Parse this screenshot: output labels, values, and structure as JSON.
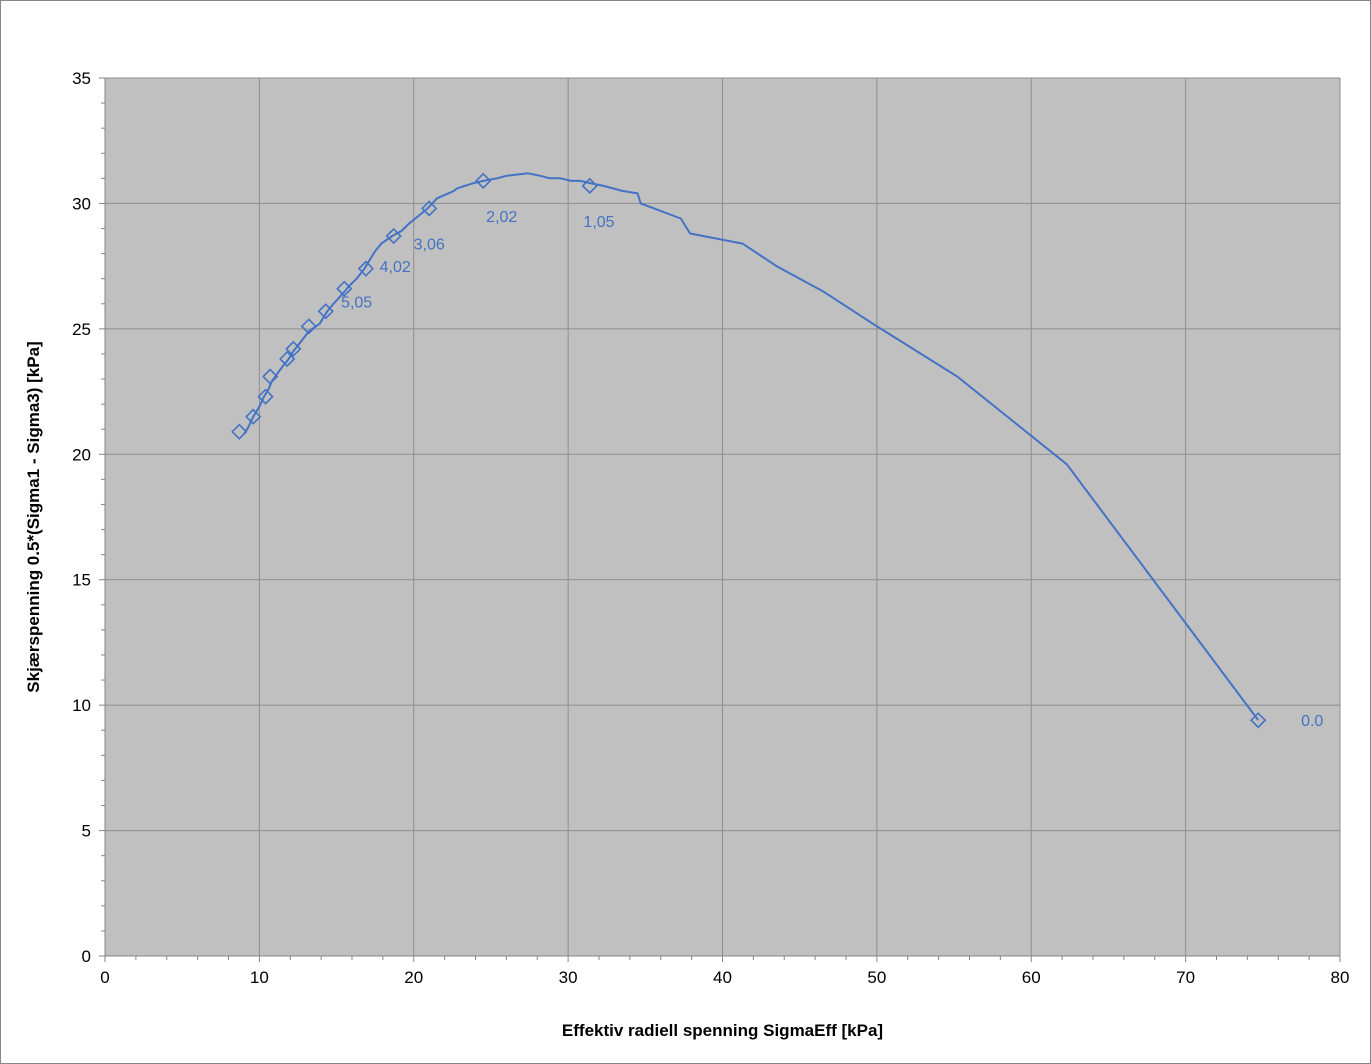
{
  "chart_data": {
    "type": "scatter",
    "title": "",
    "xlabel": "Effektiv radiell spenning SigmaEff [kPa]",
    "ylabel": "Skjærspenning 0.5*(Sigma1 - Sigma3) [kPa]",
    "xlim": [
      0,
      80
    ],
    "ylim": [
      0,
      35
    ],
    "xticks": [
      0,
      10,
      20,
      30,
      40,
      50,
      60,
      70,
      80
    ],
    "yticks": [
      0,
      5,
      10,
      15,
      20,
      25,
      30,
      35
    ],
    "xtick_labels": [
      "0",
      "10",
      "20",
      "30",
      "40",
      "50",
      "60",
      "70",
      "80"
    ],
    "ytick_labels": [
      "0",
      "5",
      "10",
      "15",
      "20",
      "25",
      "30",
      "35"
    ],
    "grid": true,
    "plot_background": "#c0c0c0",
    "series_color": "#4472c4",
    "series": [
      {
        "style": "line",
        "x": [
          74.7,
          62.3,
          55.2,
          50,
          46.5,
          43.5,
          41.3,
          37.9,
          37.3,
          34.7,
          34.5,
          33.5,
          32.3,
          31.5,
          30.8,
          30.2,
          29.5,
          28.8,
          28.2,
          27.4,
          26.0,
          25.4,
          24.5,
          23.8,
          22.8,
          22.6,
          21.5,
          20.9,
          20.3,
          19.7,
          19.2,
          18.6,
          17.9,
          17.5,
          17.2,
          16.8,
          16.3,
          15.8,
          15.4,
          14.8,
          14.4,
          13.9,
          13.2,
          12.7,
          12.2,
          11.9,
          11.5,
          10.8,
          10.6,
          10.3,
          10.0,
          9.6,
          9.3,
          9.0
        ],
        "y": [
          9.4,
          19.6,
          23.1,
          25.1,
          26.5,
          27.5,
          28.4,
          28.8,
          29.4,
          30.0,
          30.4,
          30.5,
          30.7,
          30.8,
          30.9,
          30.9,
          31.0,
          31.0,
          31.1,
          31.2,
          31.1,
          31.0,
          30.9,
          30.8,
          30.6,
          30.5,
          30.2,
          29.8,
          29.5,
          29.2,
          28.9,
          28.7,
          28.4,
          28.1,
          27.8,
          27.4,
          27.0,
          26.7,
          26.4,
          26.0,
          25.7,
          25.2,
          24.9,
          24.5,
          24.1,
          23.8,
          23.5,
          22.9,
          22.6,
          22.3,
          21.9,
          21.5,
          21.1,
          20.8
        ]
      },
      {
        "style": "markers",
        "marker": "diamond",
        "x": [
          74.7,
          31.4,
          24.5,
          21.0,
          18.7,
          16.9,
          15.5,
          14.3,
          13.2,
          12.2,
          11.8,
          10.7,
          10.4,
          9.6,
          8.7
        ],
        "y": [
          9.4,
          30.7,
          30.9,
          29.8,
          28.7,
          27.4,
          26.6,
          25.7,
          25.1,
          24.2,
          23.8,
          23.1,
          22.3,
          21.5,
          20.9
        ]
      }
    ],
    "annotations": [
      {
        "text": "0.0",
        "x": 78.2,
        "y": 9.4
      },
      {
        "text": "1,05",
        "x": 32.0,
        "y": 29.3
      },
      {
        "text": "2,02",
        "x": 25.7,
        "y": 29.5
      },
      {
        "text": "3,06",
        "x": 21.0,
        "y": 28.4
      },
      {
        "text": "4,02",
        "x": 18.8,
        "y": 27.5
      },
      {
        "text": "5,05",
        "x": 16.3,
        "y": 26.1
      }
    ]
  }
}
